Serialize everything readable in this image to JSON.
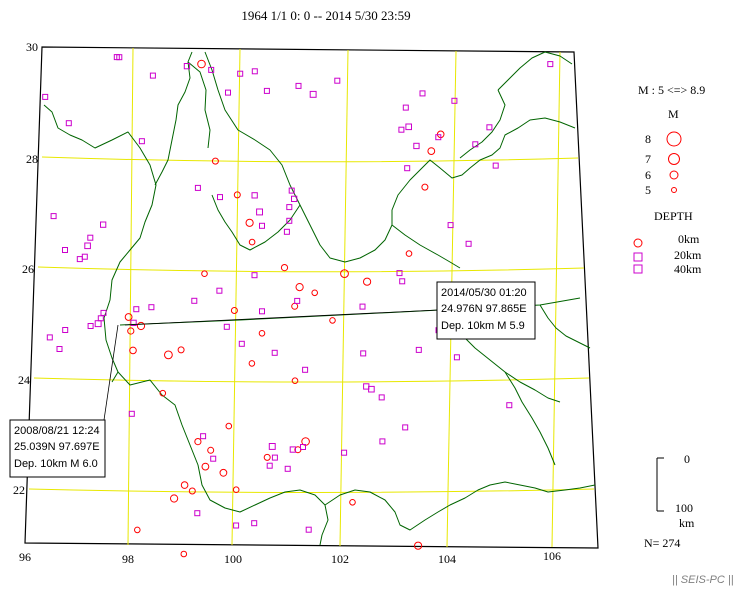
{
  "title": "1964 1/1 0: 0 -- 2014 5/30 23:59",
  "axes": {
    "lat_labels": [
      "30",
      "28",
      "26",
      "24",
      "22"
    ],
    "lon_labels": [
      "96",
      "98",
      "100",
      "102",
      "104",
      "106"
    ],
    "lat_values": [
      30,
      28,
      26,
      24,
      22
    ],
    "lon_values": [
      96,
      98,
      100,
      102,
      104,
      106
    ]
  },
  "legend": {
    "magnitude_range": "M : 5 <=> 8.9",
    "magnitude_header": "M",
    "magnitudes": [
      "8",
      "7",
      "6",
      "5"
    ],
    "depth_header": "DEPTH",
    "depths": [
      "0km",
      "20km",
      "40km"
    ],
    "depth_scale_top": "0",
    "depth_scale_bottom": "100",
    "depth_scale_unit": "km",
    "count": "N= 274"
  },
  "callouts": [
    {
      "datetime": "2008/08/21 12:24",
      "location": "25.039N  97.697E",
      "depth_mag": "Dep. 10km    M 6.0"
    },
    {
      "datetime": "2014/05/30 01:20",
      "location": "24.976N  97.865E",
      "depth_mag": "Dep. 10km    M 5.9"
    }
  ],
  "footer": "|| SEIS-PC ||",
  "colors": {
    "grid": "#e8e800",
    "border": "#006400",
    "shallow": "#ff0000",
    "mid": "#cc00cc",
    "deep": "#cc00cc"
  },
  "chart_data": {
    "type": "scatter",
    "title": "1964 1/1 0: 0 -- 2014 5/30 23:59",
    "xlabel": "",
    "ylabel": "",
    "xlim": [
      96,
      107
    ],
    "ylim": [
      21,
      30
    ],
    "grid": true,
    "legend_position": "right",
    "series": [
      {
        "name": "0km",
        "points": [
          [
            99.3,
            29.85,
            6.1
          ],
          [
            99.6,
            28.1,
            5.6
          ],
          [
            98.15,
            25.05,
            6.0
          ],
          [
            97.9,
            25.2,
            5.9
          ],
          [
            98.0,
            24.6,
            5.8
          ],
          [
            97.95,
            24.95,
            5.7
          ],
          [
            98.7,
            24.55,
            6.2
          ],
          [
            98.95,
            24.65,
            5.6
          ],
          [
            98.6,
            23.85,
            5.5
          ],
          [
            99.05,
            22.2,
            5.8
          ],
          [
            99.2,
            22.1,
            5.6
          ],
          [
            98.85,
            21.95,
            6.0
          ],
          [
            99.3,
            23.0,
            5.7
          ],
          [
            99.45,
            22.55,
            5.9
          ],
          [
            99.55,
            22.85,
            5.6
          ],
          [
            99.8,
            22.45,
            5.9
          ],
          [
            100.05,
            22.15,
            5.5
          ],
          [
            100.3,
            27.0,
            6.0
          ],
          [
            100.35,
            26.65,
            5.5
          ],
          [
            101.0,
            26.2,
            5.7
          ],
          [
            101.3,
            25.85,
            6.0
          ],
          [
            101.6,
            25.75,
            5.5
          ],
          [
            102.2,
            26.1,
            6.2
          ],
          [
            102.65,
            25.95,
            6.0
          ],
          [
            101.2,
            25.5,
            5.6
          ],
          [
            101.95,
            25.25,
            5.5
          ],
          [
            103.5,
            26.45,
            5.5
          ],
          [
            103.85,
            27.65,
            5.6
          ],
          [
            104.2,
            28.6,
            5.8
          ],
          [
            104.0,
            28.3,
            5.9
          ],
          [
            101.4,
            23.05,
            6.1
          ],
          [
            101.25,
            22.9,
            5.6
          ],
          [
            100.65,
            22.75,
            5.6
          ],
          [
            102.3,
            21.95,
            5.5
          ],
          [
            103.55,
            21.15,
            6.0
          ],
          [
            99.05,
            20.95,
            5.5
          ],
          [
            98.15,
            21.35,
            5.5
          ],
          [
            99.4,
            26.05,
            5.5
          ],
          [
            100.0,
            25.4,
            5.6
          ],
          [
            100.35,
            24.45,
            5.5
          ],
          [
            101.2,
            24.15,
            5.5
          ],
          [
            100.05,
            27.5,
            5.6
          ],
          [
            100.55,
            25.0,
            5.5
          ],
          [
            99.9,
            23.3,
            5.5
          ]
        ]
      },
      {
        "name": "20km",
        "points": [
          [
            99.0,
            29.8,
            5.4
          ],
          [
            99.5,
            29.75,
            5.2
          ],
          [
            100.1,
            29.7,
            5.1
          ],
          [
            101.3,
            29.5,
            5.2
          ],
          [
            101.6,
            29.35,
            5.6
          ],
          [
            103.5,
            29.1,
            5.3
          ],
          [
            103.55,
            28.75,
            5.5
          ],
          [
            103.4,
            28.7,
            5.2
          ],
          [
            103.7,
            28.4,
            5.4
          ],
          [
            104.15,
            28.55,
            5.3
          ],
          [
            103.5,
            28.0,
            5.1
          ],
          [
            100.4,
            27.5,
            5.4
          ],
          [
            100.5,
            27.2,
            5.6
          ],
          [
            100.55,
            26.95,
            5.3
          ],
          [
            101.1,
            27.3,
            5.3
          ],
          [
            101.1,
            27.05,
            5.2
          ],
          [
            101.2,
            27.45,
            5.4
          ],
          [
            101.15,
            27.6,
            5.1
          ],
          [
            101.05,
            26.85,
            5.2
          ],
          [
            100.4,
            26.05,
            5.1
          ],
          [
            99.7,
            25.75,
            5.2
          ],
          [
            99.2,
            25.55,
            5.1
          ],
          [
            101.25,
            25.6,
            5.2
          ],
          [
            103.3,
            26.1,
            5.3
          ],
          [
            103.35,
            25.95,
            5.2
          ],
          [
            97.4,
            25.25,
            5.1
          ],
          [
            97.35,
            25.15,
            5.3
          ],
          [
            97.3,
            25.05,
            5.6
          ],
          [
            98.0,
            25.1,
            5.4
          ],
          [
            98.05,
            25.35,
            5.2
          ],
          [
            98.35,
            25.4,
            5.1
          ],
          [
            97.15,
            25.0,
            5.3
          ],
          [
            102.6,
            24.05,
            5.4
          ],
          [
            102.7,
            24.0,
            5.5
          ],
          [
            101.4,
            24.35,
            5.1
          ],
          [
            102.9,
            23.85,
            5.2
          ],
          [
            100.75,
            22.95,
            5.6
          ],
          [
            100.8,
            22.75,
            5.2
          ],
          [
            101.15,
            22.9,
            5.4
          ],
          [
            100.7,
            22.6,
            5.1
          ],
          [
            101.35,
            22.95,
            5.3
          ],
          [
            101.05,
            22.55,
            5.2
          ],
          [
            99.4,
            23.1,
            5.3
          ],
          [
            99.6,
            22.7,
            5.1
          ],
          [
            97.0,
            26.25,
            5.2
          ],
          [
            97.05,
            26.45,
            5.5
          ],
          [
            97.1,
            26.6,
            5.3
          ],
          [
            97.35,
            26.85,
            5.4
          ],
          [
            96.9,
            26.2,
            5.2
          ],
          [
            96.6,
            26.35,
            5.1
          ],
          [
            96.35,
            26.95,
            5.1
          ],
          [
            96.1,
            29.1,
            5.2
          ],
          [
            96.6,
            28.65,
            5.1
          ],
          [
            97.6,
            29.9,
            5.1
          ],
          [
            98.3,
            29.6,
            5.1
          ],
          [
            100.05,
            21.5,
            5.2
          ],
          [
            98.0,
            23.45,
            5.1
          ],
          [
            100.15,
            24.8,
            5.1
          ],
          [
            100.8,
            24.65,
            5.1
          ],
          [
            102.15,
            22.85,
            5.3
          ]
        ]
      },
      {
        "name": "40km",
        "points": [
          [
            97.55,
            29.9,
            5.1
          ],
          [
            100.4,
            29.75,
            5.2
          ],
          [
            102.1,
            29.6,
            5.1
          ],
          [
            103.85,
            29.35,
            5.1
          ],
          [
            104.5,
            29.2,
            5.1
          ],
          [
            106.5,
            29.8,
            5.1
          ],
          [
            99.85,
            29.35,
            5.1
          ],
          [
            100.65,
            29.4,
            5.1
          ],
          [
            98.1,
            28.4,
            5.1
          ],
          [
            104.9,
            28.4,
            5.1
          ],
          [
            105.3,
            28.0,
            5.1
          ],
          [
            105.2,
            28.7,
            5.1
          ],
          [
            99.25,
            27.6,
            5.2
          ],
          [
            99.7,
            27.45,
            5.1
          ],
          [
            104.35,
            26.95,
            5.1
          ],
          [
            104.7,
            26.6,
            5.1
          ],
          [
            104.05,
            25.05,
            5.1
          ],
          [
            99.85,
            25.1,
            5.1
          ],
          [
            100.55,
            25.4,
            5.1
          ],
          [
            102.55,
            25.5,
            5.1
          ],
          [
            102.55,
            24.65,
            5.1
          ],
          [
            103.65,
            24.7,
            5.1
          ],
          [
            104.4,
            24.55,
            5.1
          ],
          [
            105.4,
            23.65,
            5.1
          ],
          [
            103.35,
            23.3,
            5.1
          ],
          [
            102.9,
            23.05,
            5.1
          ],
          [
            99.3,
            21.7,
            5.1
          ],
          [
            100.4,
            21.55,
            5.1
          ],
          [
            101.45,
            21.45,
            5.1
          ],
          [
            96.65,
            24.9,
            5.1
          ],
          [
            96.35,
            24.75,
            5.1
          ],
          [
            96.55,
            24.55,
            5.1
          ]
        ]
      }
    ]
  }
}
